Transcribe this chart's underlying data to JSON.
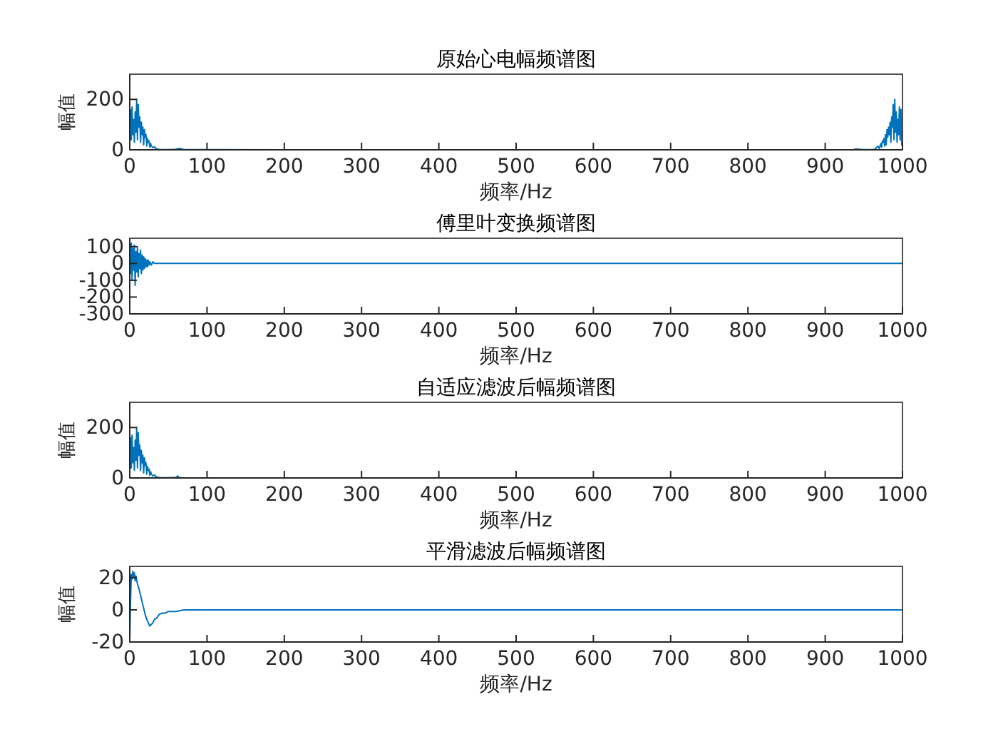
{
  "chart_data": [
    {
      "type": "line",
      "title": "原始心电幅频谱图",
      "xlabel": "频率/Hz",
      "ylabel": "幅值",
      "xlim": [
        0,
        1000
      ],
      "ylim": [
        0,
        300
      ],
      "xticks": [
        0,
        100,
        200,
        300,
        400,
        500,
        600,
        700,
        800,
        900,
        1000
      ],
      "yticks": [
        0,
        200
      ],
      "series": [
        {
          "color": "#0072bd",
          "x": [
            0,
            1,
            2,
            3,
            4,
            5,
            6,
            7,
            8,
            9,
            10,
            11,
            12,
            13,
            14,
            15,
            16,
            17,
            18,
            19,
            20,
            21,
            22,
            23,
            24,
            25,
            26,
            27,
            28,
            30,
            32,
            34,
            36,
            40,
            50,
            60,
            64,
            70,
            100,
            200,
            300,
            400,
            500,
            600,
            700,
            800,
            900,
            936,
            940,
            950,
            960,
            964,
            966,
            968,
            970,
            972,
            973,
            974,
            975,
            976,
            977,
            978,
            979,
            980,
            981,
            982,
            983,
            984,
            985,
            986,
            987,
            988,
            989,
            990,
            991,
            992,
            993,
            994,
            995,
            996,
            997,
            998,
            999,
            1000
          ],
          "values": [
            20,
            160,
            40,
            170,
            60,
            120,
            30,
            150,
            70,
            200,
            40,
            180,
            90,
            130,
            30,
            110,
            60,
            90,
            20,
            80,
            50,
            60,
            15,
            45,
            30,
            35,
            10,
            25,
            15,
            8,
            12,
            5,
            3,
            1,
            1,
            2,
            6,
            1,
            1,
            0,
            0,
            0,
            0,
            0,
            0,
            0,
            0,
            0,
            3,
            1,
            1,
            2,
            8,
            15,
            5,
            25,
            10,
            35,
            30,
            45,
            15,
            60,
            20,
            80,
            50,
            90,
            60,
            110,
            30,
            130,
            90,
            180,
            40,
            200,
            70,
            150,
            30,
            120,
            60,
            170,
            40,
            160,
            20,
            20
          ]
        }
      ]
    },
    {
      "type": "line",
      "title": "傅里叶变换频谱图",
      "xlabel": "频率/Hz",
      "xlim": [
        0,
        1000
      ],
      "ylim": [
        -300,
        150
      ],
      "xticks": [
        0,
        100,
        200,
        300,
        400,
        500,
        600,
        700,
        800,
        900,
        1000
      ],
      "yticks": [
        -300,
        -200,
        -100,
        0,
        100
      ],
      "series": [
        {
          "color": "#0072bd",
          "x": [
            0,
            1,
            2,
            3,
            4,
            5,
            6,
            7,
            8,
            9,
            10,
            11,
            12,
            13,
            14,
            15,
            16,
            17,
            18,
            19,
            20,
            21,
            22,
            23,
            24,
            25,
            26,
            28,
            30,
            32,
            34,
            36,
            40,
            50,
            100,
            200,
            500,
            1000
          ],
          "values": [
            140,
            -60,
            120,
            -100,
            90,
            -40,
            110,
            -130,
            70,
            -50,
            100,
            -80,
            60,
            -30,
            80,
            -60,
            50,
            -40,
            40,
            -30,
            30,
            -20,
            20,
            -20,
            20,
            -10,
            10,
            -10,
            10,
            0,
            0,
            0,
            0,
            0,
            0,
            0,
            0,
            0
          ]
        }
      ]
    },
    {
      "type": "line",
      "title": "自适应滤波后幅频谱图",
      "xlabel": "频率/Hz",
      "ylabel": "幅值",
      "xlim": [
        0,
        1000
      ],
      "ylim": [
        0,
        300
      ],
      "xticks": [
        0,
        100,
        200,
        300,
        400,
        500,
        600,
        700,
        800,
        900,
        1000
      ],
      "yticks": [
        0,
        200
      ],
      "series": [
        {
          "color": "#0072bd",
          "x": [
            0,
            1,
            2,
            3,
            4,
            5,
            6,
            7,
            8,
            9,
            10,
            11,
            12,
            13,
            14,
            15,
            16,
            17,
            18,
            19,
            20,
            21,
            22,
            23,
            24,
            25,
            26,
            27,
            28,
            30,
            32,
            34,
            36,
            40,
            50,
            60,
            62,
            64,
            70
          ],
          "values": [
            20,
            160,
            40,
            170,
            60,
            120,
            30,
            150,
            70,
            200,
            40,
            180,
            90,
            130,
            30,
            110,
            60,
            90,
            20,
            80,
            50,
            60,
            15,
            45,
            30,
            35,
            10,
            25,
            15,
            8,
            12,
            5,
            3,
            1,
            1,
            2,
            8,
            1,
            1
          ]
        }
      ]
    },
    {
      "type": "line",
      "title": "平滑滤波后幅频谱图",
      "xlabel": "频率/Hz",
      "ylabel": "幅值",
      "xlim": [
        0,
        1000
      ],
      "ylim": [
        -20,
        27
      ],
      "xticks": [
        0,
        100,
        200,
        300,
        400,
        500,
        600,
        700,
        800,
        900,
        1000
      ],
      "yticks": [
        -20,
        0,
        20
      ],
      "series": [
        {
          "color": "#0072bd",
          "x": [
            0,
            1,
            2,
            3,
            4,
            5,
            6,
            7,
            8,
            10,
            12,
            14,
            16,
            18,
            20,
            22,
            24,
            26,
            28,
            30,
            32,
            35,
            38,
            42,
            46,
            50,
            55,
            60,
            70,
            80,
            90,
            100,
            200,
            500,
            1000
          ],
          "values": [
            -20,
            5,
            22,
            19,
            24,
            20,
            23,
            18,
            21,
            16,
            13,
            9,
            5,
            1,
            -3,
            -6,
            -8,
            -10,
            -9,
            -8,
            -6,
            -5,
            -3,
            -2,
            -2,
            -1,
            -1,
            -1,
            0,
            0,
            0,
            0,
            0,
            0,
            0
          ]
        }
      ]
    }
  ]
}
